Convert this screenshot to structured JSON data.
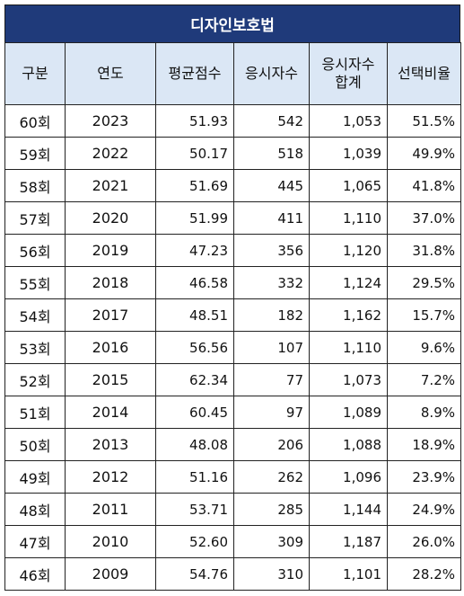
{
  "title": "디자인보호법",
  "headers": {
    "gubun": "구분",
    "year": "연도",
    "avg_score": "평균점수",
    "applicants": "응시자수",
    "total_line1": "응시자수",
    "total_line2": "합계",
    "selection_rate": "선택비율"
  },
  "rows": [
    {
      "gubun": "60회",
      "year": "2023",
      "avg": "51.93",
      "applicants": "542",
      "total": "1,053",
      "rate": "51.5%"
    },
    {
      "gubun": "59회",
      "year": "2022",
      "avg": "50.17",
      "applicants": "518",
      "total": "1,039",
      "rate": "49.9%"
    },
    {
      "gubun": "58회",
      "year": "2021",
      "avg": "51.69",
      "applicants": "445",
      "total": "1,065",
      "rate": "41.8%"
    },
    {
      "gubun": "57회",
      "year": "2020",
      "avg": "51.99",
      "applicants": "411",
      "total": "1,110",
      "rate": "37.0%"
    },
    {
      "gubun": "56회",
      "year": "2019",
      "avg": "47.23",
      "applicants": "356",
      "total": "1,120",
      "rate": "31.8%"
    },
    {
      "gubun": "55회",
      "year": "2018",
      "avg": "46.58",
      "applicants": "332",
      "total": "1,124",
      "rate": "29.5%"
    },
    {
      "gubun": "54회",
      "year": "2017",
      "avg": "48.51",
      "applicants": "182",
      "total": "1,162",
      "rate": "15.7%"
    },
    {
      "gubun": "53회",
      "year": "2016",
      "avg": "56.56",
      "applicants": "107",
      "total": "1,110",
      "rate": "9.6%"
    },
    {
      "gubun": "52회",
      "year": "2015",
      "avg": "62.34",
      "applicants": "77",
      "total": "1,073",
      "rate": "7.2%"
    },
    {
      "gubun": "51회",
      "year": "2014",
      "avg": "60.45",
      "applicants": "97",
      "total": "1,089",
      "rate": "8.9%"
    },
    {
      "gubun": "50회",
      "year": "2013",
      "avg": "48.08",
      "applicants": "206",
      "total": "1,088",
      "rate": "18.9%"
    },
    {
      "gubun": "49회",
      "year": "2012",
      "avg": "51.16",
      "applicants": "262",
      "total": "1,096",
      "rate": "23.9%"
    },
    {
      "gubun": "48회",
      "year": "2011",
      "avg": "53.71",
      "applicants": "285",
      "total": "1,144",
      "rate": "24.9%"
    },
    {
      "gubun": "47회",
      "year": "2010",
      "avg": "52.60",
      "applicants": "309",
      "total": "1,187",
      "rate": "26.0%"
    },
    {
      "gubun": "46회",
      "year": "2009",
      "avg": "54.76",
      "applicants": "310",
      "total": "1,101",
      "rate": "28.2%"
    }
  ],
  "colors": {
    "title_bg": "#1f3a7a",
    "header_bg": "#dbe7f5",
    "border": "#222222"
  }
}
